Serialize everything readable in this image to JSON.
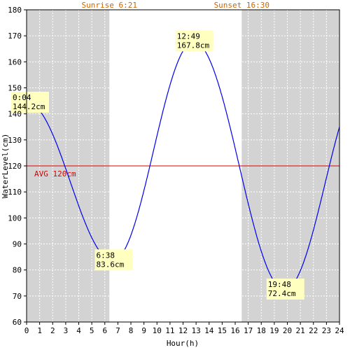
{
  "chart_data": {
    "type": "line",
    "xlabel": "Hour(h)",
    "ylabel": "WaterLevel(cm)",
    "xlim": [
      0,
      24
    ],
    "ylim": [
      60,
      180
    ],
    "x_ticks": [
      0,
      1,
      2,
      3,
      4,
      5,
      6,
      7,
      8,
      9,
      10,
      11,
      12,
      13,
      14,
      15,
      16,
      17,
      18,
      19,
      20,
      21,
      22,
      23,
      24
    ],
    "y_ticks": [
      60,
      70,
      80,
      90,
      100,
      110,
      120,
      130,
      140,
      150,
      160,
      170,
      180
    ],
    "grid": true,
    "sunrise": {
      "label": "Sunrise 6:21",
      "hour": 6.35
    },
    "sunset": {
      "label": "Sunset 16:30",
      "hour": 16.5
    },
    "night_shading": [
      [
        0,
        6.35
      ],
      [
        16.5,
        24
      ]
    ],
    "average": {
      "label": "AVG 120cm",
      "value": 120,
      "color": "#e00000"
    },
    "series": [
      {
        "color": "#0000ee",
        "extrema": [
          {
            "time": "0:04",
            "hour": 0.067,
            "level": 144.2,
            "label": "144.2cm"
          },
          {
            "time": "6:38",
            "hour": 6.633,
            "level": 83.6,
            "label": "83.6cm"
          },
          {
            "time": "12:49",
            "hour": 12.817,
            "level": 167.8,
            "label": "167.8cm"
          },
          {
            "time": "19:48",
            "hour": 19.8,
            "level": 72.4,
            "label": "72.4cm"
          }
        ],
        "end": {
          "hour": 24,
          "level": 135
        }
      }
    ],
    "colors": {
      "night": "#d3d3d3",
      "sun_label": "#cc6600",
      "annotation_bg": "#ffffc0",
      "grid": "#ffffff"
    }
  }
}
